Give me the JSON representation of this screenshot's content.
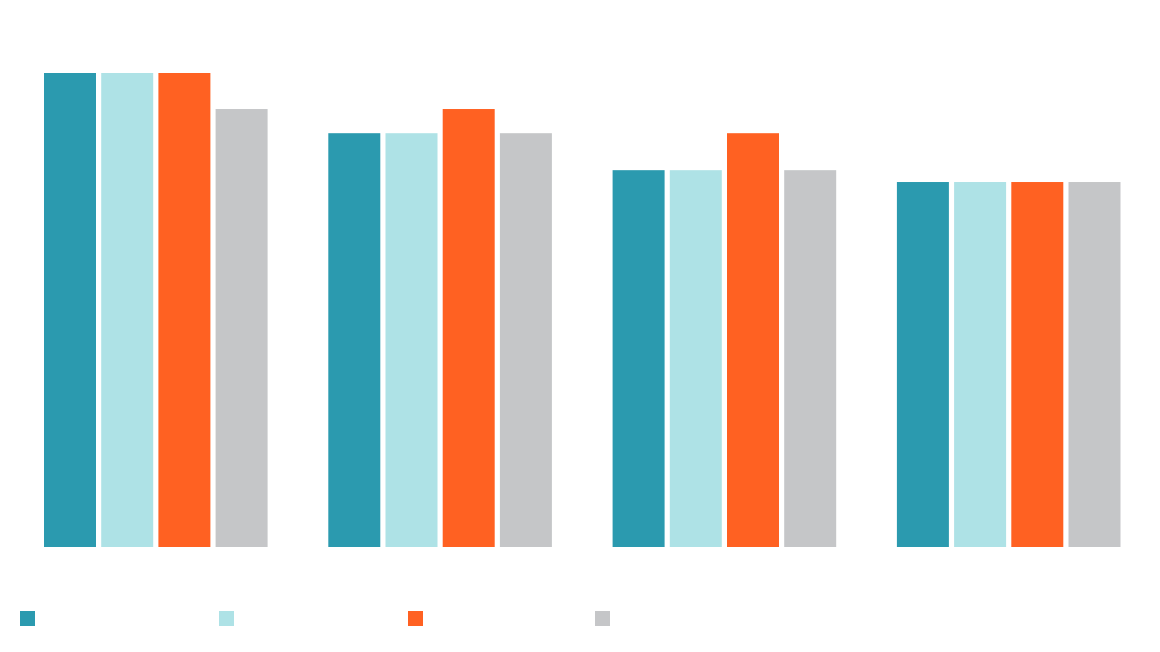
{
  "chart_data": {
    "type": "bar",
    "categories": [
      null,
      null,
      null,
      null
    ],
    "series": [
      {
        "color": "#2b9aaf",
        "values": [
          100,
          87.3,
          79.5,
          77
        ]
      },
      {
        "color": "#aee2e6",
        "values": [
          100,
          87.3,
          79.5,
          77
        ]
      },
      {
        "color": "#ff6122",
        "values": [
          100,
          92.4,
          87.3,
          77
        ]
      },
      {
        "color": "#c5c6c8",
        "values": [
          92.4,
          87.3,
          79.5,
          77
        ]
      }
    ],
    "ylim": [
      0,
      100
    ],
    "grid": false
  }
}
